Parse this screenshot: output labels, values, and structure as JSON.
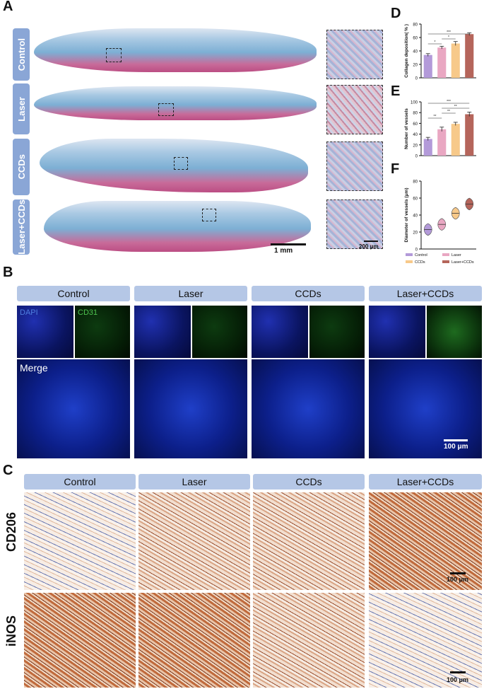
{
  "panelA": {
    "label": "A",
    "rows": [
      "Control",
      "Laser",
      "CCDs",
      "Laser+CCDs"
    ],
    "scale_main": "1 mm",
    "scale_inset": "200 μm"
  },
  "panelB": {
    "label": "B",
    "groups": [
      "Control",
      "Laser",
      "CCDs",
      "Laser+CCDs"
    ],
    "channel_dapi": "DAPI",
    "channel_cd31": "CD31",
    "merge": "Merge",
    "scale": "100 μm"
  },
  "panelC": {
    "label": "C",
    "groups": [
      "Control",
      "Laser",
      "CCDs",
      "Laser+CCDs"
    ],
    "markers": [
      "CD206",
      "iNOS"
    ],
    "scale": "100 μm"
  },
  "colors": {
    "Control": "#b39ad9",
    "Laser": "#e9a7c2",
    "CCDs": "#f7c98a",
    "Laser+CCDs": "#b5655b"
  },
  "chart_data": [
    {
      "panel": "D",
      "type": "bar",
      "categories": [
        "Control",
        "Laser",
        "CCDs",
        "Laser+CCDs"
      ],
      "values": [
        34,
        45,
        51,
        65
      ],
      "errors": [
        2,
        2,
        3,
        2
      ],
      "ylabel": "Collagen deposition( % )",
      "ylim": [
        0,
        80
      ],
      "yticks": [
        0,
        20,
        40,
        60,
        80
      ],
      "sig": [
        "*",
        "*",
        "***"
      ]
    },
    {
      "panel": "E",
      "type": "bar",
      "categories": [
        "Control",
        "Laser",
        "CCDs",
        "Laser+CCDs"
      ],
      "values": [
        31,
        49,
        59,
        77
      ],
      "errors": [
        3,
        4,
        3,
        4
      ],
      "ylabel": "Number of vessels",
      "ylim": [
        0,
        100
      ],
      "yticks": [
        0,
        20,
        40,
        60,
        80,
        100
      ],
      "sig": [
        "**",
        "**",
        "**",
        "***"
      ]
    },
    {
      "panel": "F",
      "type": "violin",
      "categories": [
        "Control",
        "Laser",
        "CCDs",
        "Laser+CCDs"
      ],
      "values": [
        23,
        29,
        42,
        53
      ],
      "ylabel": "Diameter of vessels (μm)",
      "ylim": [
        0,
        80
      ],
      "yticks": [
        0,
        20,
        40,
        60,
        80
      ],
      "legend": [
        "Control",
        "Laser",
        "CCDs",
        "Laser+CCDs"
      ]
    }
  ],
  "chart_labels": [
    "D",
    "E",
    "F"
  ]
}
